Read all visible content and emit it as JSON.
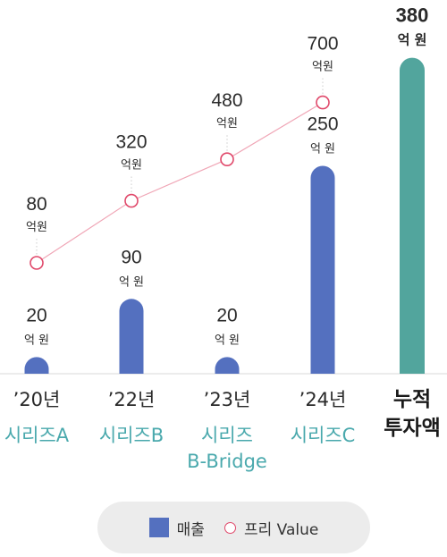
{
  "colors": {
    "bar": "#5470bf",
    "total_bar": "#52a59d",
    "line": "#f0a6b6",
    "marker": "#e0486a",
    "series_label": "#4aa9ad"
  },
  "chart_data": {
    "type": "bar",
    "categories": [
      {
        "year": "’20년",
        "series": [
          "시리즈A"
        ]
      },
      {
        "year": "’22년",
        "series": [
          "시리즈B"
        ]
      },
      {
        "year": "’23년",
        "series": [
          "시리즈",
          "B-Bridge"
        ]
      },
      {
        "year": "’24년",
        "series": [
          "시리즈C"
        ]
      },
      {
        "year": "",
        "series": [],
        "total_label": [
          "누적",
          "투자액"
        ]
      }
    ],
    "unit": "억 원",
    "unit_compact": "억원",
    "series": [
      {
        "name": "매출",
        "type": "bar",
        "values": [
          20,
          90,
          20,
          250,
          380
        ]
      },
      {
        "name": "프리 Value",
        "type": "line",
        "values": [
          80,
          320,
          480,
          700,
          null
        ]
      }
    ],
    "legend": {
      "position": "bottom-center",
      "items": [
        {
          "label": "매출",
          "icon": "square-bar-swatch"
        },
        {
          "label": "프리 Value",
          "icon": "circle-marker-swatch"
        }
      ]
    }
  }
}
